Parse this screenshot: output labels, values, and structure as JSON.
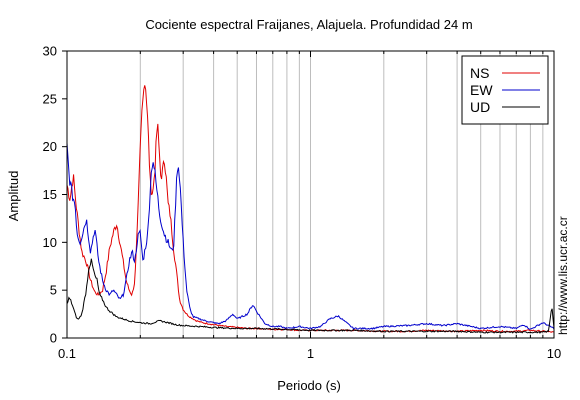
{
  "chart_data": {
    "type": "line",
    "title": "Cociente espectral Fraijanes, Alajuela. Profundidad 24 m",
    "xlabel": "Periodo (s)",
    "ylabel": "Amplitud",
    "xscale": "log",
    "xlim": [
      0.1,
      10
    ],
    "ylim": [
      0,
      30
    ],
    "x_ticks": [
      0.1,
      1,
      10
    ],
    "x_tick_labels": [
      "0.1",
      "1",
      "10"
    ],
    "y_ticks": [
      0,
      5,
      10,
      15,
      20,
      25,
      30
    ],
    "y_tick_labels": [
      "0",
      "5",
      "10",
      "15",
      "20",
      "25",
      "30"
    ],
    "grid": "vertical, log decades",
    "legend": "top-right",
    "credit": "http://www.lis.ucr.ac.cr",
    "series": [
      {
        "name": "NS",
        "color": "#e00000",
        "x": [
          0.1,
          0.103,
          0.106,
          0.11,
          0.115,
          0.12,
          0.125,
          0.13,
          0.135,
          0.14,
          0.145,
          0.15,
          0.155,
          0.16,
          0.165,
          0.17,
          0.175,
          0.18,
          0.185,
          0.19,
          0.195,
          0.2,
          0.205,
          0.21,
          0.215,
          0.22,
          0.225,
          0.23,
          0.235,
          0.24,
          0.245,
          0.25,
          0.255,
          0.26,
          0.265,
          0.27,
          0.275,
          0.28,
          0.29,
          0.3,
          0.31,
          0.32,
          0.34,
          0.36,
          0.38,
          0.4,
          0.45,
          0.5,
          0.55,
          0.6,
          0.7,
          0.8,
          0.9,
          1.0,
          1.2,
          1.5,
          2.0,
          2.5,
          3.0,
          4.0,
          5.0,
          6.0,
          7.0,
          8.0,
          9.0,
          10.0
        ],
        "values": [
          16,
          14.5,
          17,
          13,
          9,
          8,
          6,
          4.8,
          4.5,
          5,
          7,
          9.5,
          11,
          12,
          10,
          8,
          6,
          5,
          4.5,
          6,
          12,
          20,
          26,
          27,
          22,
          16,
          15,
          18,
          22.5,
          19,
          16,
          19.5,
          17,
          14,
          13,
          11,
          9,
          7.5,
          4,
          3,
          2.5,
          2.2,
          1.8,
          1.6,
          1.5,
          1.4,
          1.2,
          1.1,
          1.0,
          1.0,
          0.9,
          0.9,
          0.8,
          0.8,
          0.8,
          0.8,
          0.7,
          0.7,
          0.8,
          0.7,
          0.8,
          0.7,
          0.7,
          0.8,
          0.7,
          0.6
        ]
      },
      {
        "name": "EW",
        "color": "#0000cc",
        "x": [
          0.1,
          0.102,
          0.105,
          0.108,
          0.11,
          0.113,
          0.116,
          0.12,
          0.125,
          0.13,
          0.135,
          0.14,
          0.145,
          0.15,
          0.155,
          0.16,
          0.165,
          0.17,
          0.175,
          0.18,
          0.185,
          0.19,
          0.195,
          0.2,
          0.205,
          0.21,
          0.215,
          0.22,
          0.225,
          0.23,
          0.235,
          0.24,
          0.25,
          0.26,
          0.27,
          0.275,
          0.28,
          0.285,
          0.29,
          0.3,
          0.31,
          0.32,
          0.33,
          0.35,
          0.37,
          0.4,
          0.42,
          0.45,
          0.48,
          0.5,
          0.55,
          0.58,
          0.6,
          0.65,
          0.7,
          0.75,
          0.8,
          0.9,
          1.0,
          1.1,
          1.2,
          1.3,
          1.5,
          1.8,
          2.0,
          2.5,
          3.0,
          3.5,
          4.0,
          5.0,
          6.0,
          7.0,
          7.5,
          8.0,
          9.0,
          10.0
        ],
        "values": [
          20,
          17,
          15,
          14,
          11,
          10,
          11,
          12.5,
          9,
          11.5,
          8,
          6,
          5,
          4.5,
          5,
          4.5,
          4,
          4.5,
          6,
          8,
          9,
          8,
          10.5,
          11,
          8,
          9.5,
          11,
          16,
          19,
          17,
          15,
          13,
          11,
          10,
          9,
          10,
          15,
          18.5,
          17,
          10,
          5,
          3,
          2.2,
          2,
          1.8,
          1.6,
          1.5,
          1.8,
          2.5,
          2,
          2.5,
          3.5,
          2.8,
          1.5,
          1.2,
          1.2,
          1.0,
          1.2,
          1.0,
          1.2,
          2.0,
          2.3,
          1.0,
          1.0,
          1.2,
          1.3,
          1.5,
          1.3,
          1.5,
          1.0,
          1.2,
          1.0,
          1.4,
          0.9,
          1.6,
          1.0
        ]
      },
      {
        "name": "UD",
        "color": "#000000",
        "x": [
          0.1,
          0.102,
          0.104,
          0.106,
          0.108,
          0.11,
          0.112,
          0.115,
          0.118,
          0.12,
          0.123,
          0.126,
          0.13,
          0.133,
          0.136,
          0.14,
          0.145,
          0.15,
          0.155,
          0.16,
          0.17,
          0.18,
          0.2,
          0.22,
          0.24,
          0.26,
          0.28,
          0.3,
          0.35,
          0.4,
          0.5,
          0.6,
          0.8,
          1.0,
          1.5,
          2.0,
          3.0,
          4.0,
          5.0,
          6.0,
          7.0,
          8.0,
          9.0,
          9.5,
          9.8,
          10.0
        ],
        "values": [
          3.5,
          4.2,
          3.8,
          3.2,
          2.5,
          2.0,
          2.0,
          2.5,
          4.0,
          5.0,
          7.5,
          8.0,
          6.5,
          6.0,
          4.5,
          4.0,
          3.2,
          2.8,
          2.5,
          2.2,
          2.0,
          1.8,
          1.6,
          1.5,
          1.8,
          1.6,
          1.4,
          1.3,
          1.2,
          1.1,
          1.0,
          1.0,
          0.9,
          0.8,
          0.8,
          0.7,
          0.7,
          0.7,
          0.6,
          0.6,
          0.6,
          0.6,
          0.6,
          0.7,
          3.4,
          1.0
        ]
      }
    ]
  }
}
